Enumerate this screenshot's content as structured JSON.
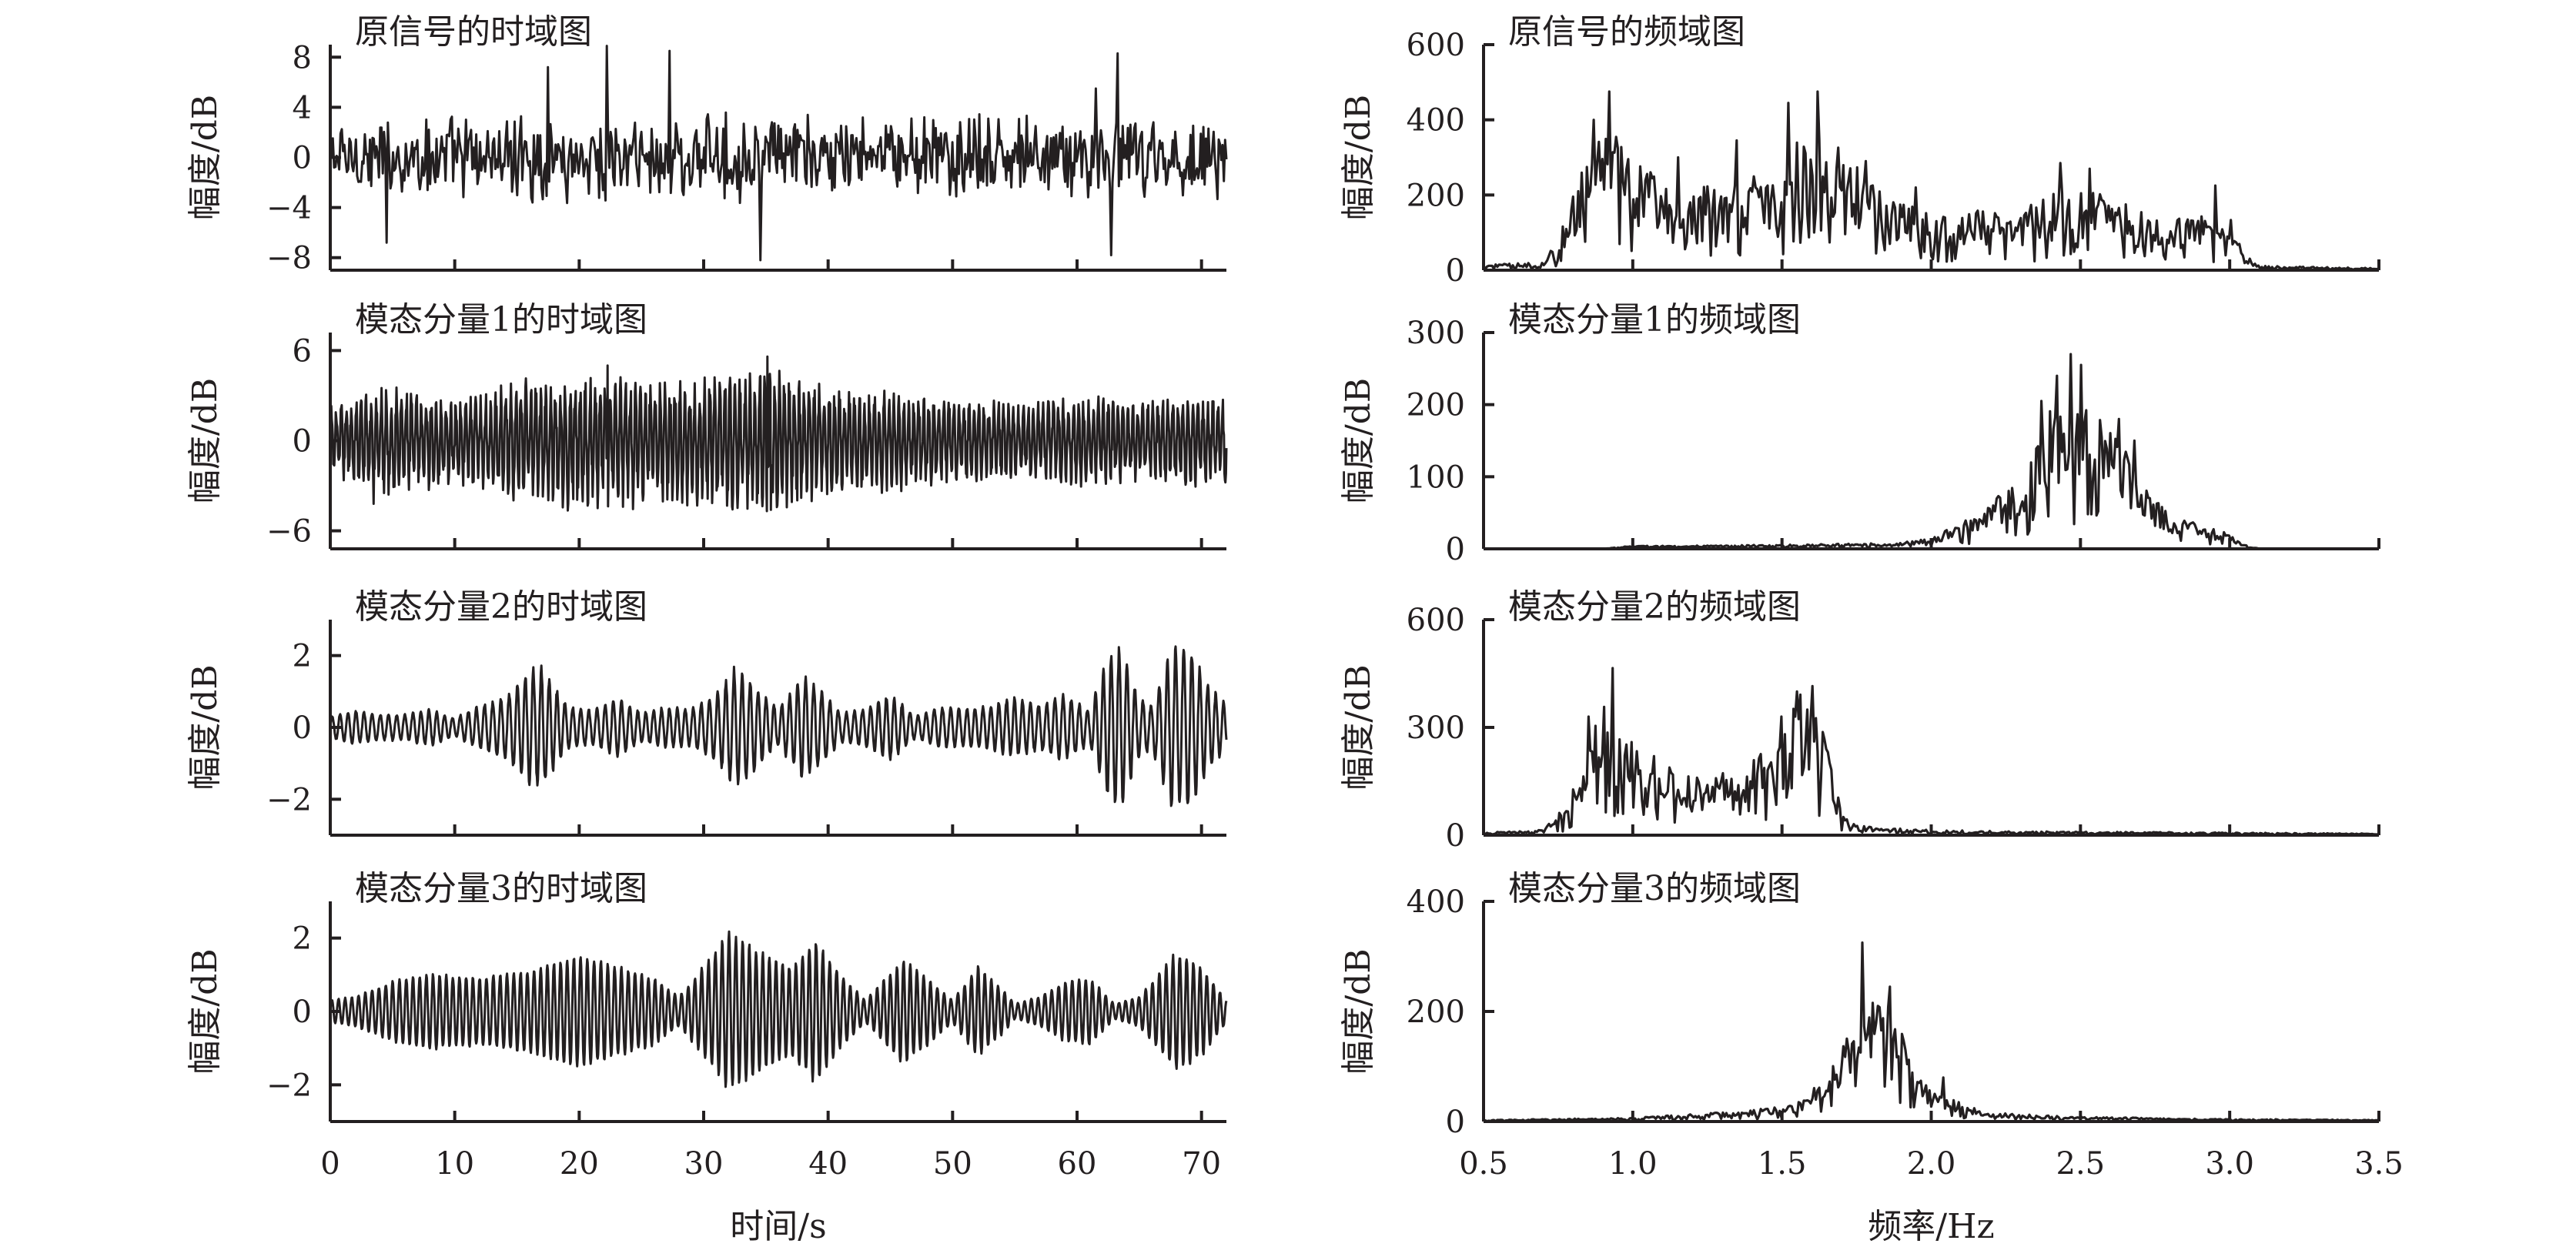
{
  "colors": {
    "ink": "#231f20",
    "background": "#ffffff"
  },
  "chart_data": [
    {
      "type": "line",
      "domain": "time",
      "title": "原信号的时域图",
      "ylabel": "幅度/dB",
      "xlabel": "",
      "xlim": [
        0,
        72
      ],
      "ylim": [
        -9,
        9
      ],
      "yticks": [
        8,
        4,
        0,
        -4,
        -8
      ],
      "ytick_labels": [
        "8",
        "4",
        "0",
        "−4",
        "−8"
      ],
      "xticks": [
        0,
        10,
        20,
        30,
        40,
        50,
        60,
        70
      ],
      "xtick_labels": [],
      "signal": {
        "kind": "noise",
        "scale": 2.6,
        "spikes": [
          [
            22.2,
            8.9
          ],
          [
            27.3,
            8.5
          ],
          [
            34.6,
            -8.2
          ],
          [
            62.7,
            -7.8
          ],
          [
            63.3,
            8.3
          ],
          [
            61.5,
            5.5
          ],
          [
            17.5,
            7.2
          ],
          [
            4.5,
            -6.8
          ]
        ]
      }
    },
    {
      "type": "line",
      "domain": "time",
      "title": "模态分量1的时域图",
      "ylabel": "幅度/dB",
      "xlabel": "",
      "xlim": [
        0,
        72
      ],
      "ylim": [
        -7.2,
        7.2
      ],
      "yticks": [
        6,
        0,
        -6
      ],
      "ytick_labels": [
        "6",
        "0",
        "−6"
      ],
      "xticks": [
        0,
        10,
        20,
        30,
        40,
        50,
        60,
        70
      ],
      "xtick_labels": [],
      "signal": {
        "kind": "oscillation",
        "freq": 2.5,
        "amps": [
          [
            0,
            1.8
          ],
          [
            5,
            3.0
          ],
          [
            10,
            2.2
          ],
          [
            15,
            3.0
          ],
          [
            20,
            3.6
          ],
          [
            25,
            3.4
          ],
          [
            30,
            3.2
          ],
          [
            35,
            4.0
          ],
          [
            40,
            2.8
          ],
          [
            45,
            2.6
          ],
          [
            50,
            2.2
          ],
          [
            55,
            2.0
          ],
          [
            60,
            2.4
          ],
          [
            65,
            2.0
          ],
          [
            70,
            2.6
          ],
          [
            72,
            2.4
          ]
        ],
        "jitter": 0.35,
        "spikes": [
          [
            35.1,
            5.6
          ],
          [
            35.4,
            -4.6
          ],
          [
            22.3,
            5.0
          ],
          [
            3.5,
            -4.2
          ]
        ]
      }
    },
    {
      "type": "line",
      "domain": "time",
      "title": "模态分量2的时域图",
      "ylabel": "幅度/dB",
      "xlabel": "",
      "xlim": [
        0,
        72
      ],
      "ylim": [
        -3,
        3
      ],
      "yticks": [
        2,
        0,
        -2
      ],
      "ytick_labels": [
        "2",
        "0",
        "−2"
      ],
      "xticks": [
        0,
        10,
        20,
        30,
        40,
        50,
        60,
        70
      ],
      "xtick_labels": [],
      "signal": {
        "kind": "oscillation",
        "freq": 1.55,
        "amps": [
          [
            0,
            0.3
          ],
          [
            2,
            0.45
          ],
          [
            4,
            0.35
          ],
          [
            6,
            0.35
          ],
          [
            8,
            0.5
          ],
          [
            10,
            0.25
          ],
          [
            12,
            0.6
          ],
          [
            14,
            0.8
          ],
          [
            16,
            1.55
          ],
          [
            17,
            1.6
          ],
          [
            19,
            0.6
          ],
          [
            21,
            0.45
          ],
          [
            23,
            0.8
          ],
          [
            25,
            0.4
          ],
          [
            27,
            0.55
          ],
          [
            29,
            0.5
          ],
          [
            31,
            0.9
          ],
          [
            32.5,
            1.6
          ],
          [
            34,
            1.2
          ],
          [
            36,
            0.5
          ],
          [
            38,
            1.4
          ],
          [
            39.5,
            1.0
          ],
          [
            41,
            0.4
          ],
          [
            43,
            0.5
          ],
          [
            45,
            0.9
          ],
          [
            47,
            0.3
          ],
          [
            49,
            0.55
          ],
          [
            51,
            0.5
          ],
          [
            53,
            0.6
          ],
          [
            55,
            0.8
          ],
          [
            57,
            0.6
          ],
          [
            59,
            0.9
          ],
          [
            61,
            0.45
          ],
          [
            62.5,
            1.9
          ],
          [
            63.5,
            2.2
          ],
          [
            65,
            0.8
          ],
          [
            66,
            0.6
          ],
          [
            67.5,
            2.1
          ],
          [
            69,
            2.2
          ],
          [
            70.5,
            1.2
          ],
          [
            72,
            0.6
          ]
        ],
        "jitter": 0.08,
        "spikes": []
      }
    },
    {
      "type": "line",
      "domain": "time",
      "title": "模态分量3的时域图",
      "ylabel": "幅度/dB",
      "xlabel": "时间/s",
      "xlim": [
        0,
        72
      ],
      "ylim": [
        -3,
        3
      ],
      "yticks": [
        2,
        0,
        -2
      ],
      "ytick_labels": [
        "2",
        "0",
        "−2"
      ],
      "xticks": [
        0,
        10,
        20,
        30,
        40,
        50,
        60,
        70
      ],
      "xtick_labels": [
        "0",
        "10",
        "20",
        "30",
        "40",
        "50",
        "60",
        "70"
      ],
      "signal": {
        "kind": "oscillation",
        "freq": 1.85,
        "amps": [
          [
            0,
            0.3
          ],
          [
            2,
            0.4
          ],
          [
            5,
            0.8
          ],
          [
            8,
            1.0
          ],
          [
            12,
            0.9
          ],
          [
            16,
            1.1
          ],
          [
            20,
            1.5
          ],
          [
            23,
            1.2
          ],
          [
            26,
            0.9
          ],
          [
            28,
            0.4
          ],
          [
            30,
            1.2
          ],
          [
            32,
            2.1
          ],
          [
            35,
            1.5
          ],
          [
            37,
            1.2
          ],
          [
            39,
            1.9
          ],
          [
            41,
            1.0
          ],
          [
            43,
            0.3
          ],
          [
            46,
            1.4
          ],
          [
            48,
            0.9
          ],
          [
            50,
            0.3
          ],
          [
            52,
            1.2
          ],
          [
            54,
            0.6
          ],
          [
            55,
            0.2
          ],
          [
            57,
            0.4
          ],
          [
            59,
            0.8
          ],
          [
            61,
            0.9
          ],
          [
            63,
            0.2
          ],
          [
            65,
            0.4
          ],
          [
            68,
            1.6
          ],
          [
            70,
            1.2
          ],
          [
            72,
            0.3
          ]
        ],
        "jitter": 0.05,
        "spikes": []
      }
    },
    {
      "type": "line",
      "domain": "frequency",
      "title": "原信号的频域图",
      "ylabel": "幅度/dB",
      "xlabel": "",
      "xlim": [
        0.5,
        3.5
      ],
      "ylim": [
        0,
        600
      ],
      "yticks": [
        0,
        200,
        400,
        600
      ],
      "ytick_labels": [
        "0",
        "200",
        "400",
        "600"
      ],
      "xticks": [
        0.5,
        1.0,
        1.5,
        2.0,
        2.5,
        3.0,
        3.5
      ],
      "xtick_labels": [],
      "spectrum": {
        "base": [
          [
            0.5,
            10
          ],
          [
            0.7,
            15
          ],
          [
            0.75,
            60
          ],
          [
            0.8,
            150
          ],
          [
            0.85,
            230
          ],
          [
            0.9,
            280
          ],
          [
            1.0,
            200
          ],
          [
            1.1,
            170
          ],
          [
            1.2,
            160
          ],
          [
            1.3,
            150
          ],
          [
            1.4,
            170
          ],
          [
            1.5,
            210
          ],
          [
            1.6,
            260
          ],
          [
            1.7,
            230
          ],
          [
            1.8,
            160
          ],
          [
            1.9,
            130
          ],
          [
            2.0,
            100
          ],
          [
            2.1,
            110
          ],
          [
            2.2,
            110
          ],
          [
            2.3,
            110
          ],
          [
            2.4,
            140
          ],
          [
            2.5,
            150
          ],
          [
            2.6,
            140
          ],
          [
            2.7,
            110
          ],
          [
            2.8,
            100
          ],
          [
            2.9,
            100
          ],
          [
            3.0,
            110
          ],
          [
            3.05,
            30
          ],
          [
            3.1,
            8
          ],
          [
            3.5,
            4
          ]
        ],
        "noise": 0.45,
        "peaks": [
          [
            0.92,
            475
          ],
          [
            0.87,
            400
          ],
          [
            1.62,
            475
          ],
          [
            1.52,
            445
          ],
          [
            1.35,
            345
          ],
          [
            1.15,
            300
          ],
          [
            2.43,
            285
          ],
          [
            2.53,
            270
          ],
          [
            1.95,
            220
          ],
          [
            2.95,
            225
          ],
          [
            1.78,
            290
          ]
        ]
      }
    },
    {
      "type": "line",
      "domain": "frequency",
      "title": "模态分量1的频域图",
      "ylabel": "幅度/dB",
      "xlabel": "",
      "xlim": [
        0.5,
        3.5
      ],
      "ylim": [
        0,
        300
      ],
      "yticks": [
        0,
        100,
        200,
        300
      ],
      "ytick_labels": [
        "0",
        "100",
        "200",
        "300"
      ],
      "xticks": [
        0.5,
        1.0,
        1.5,
        2.0,
        2.5,
        3.0,
        3.5
      ],
      "xtick_labels": [],
      "spectrum": {
        "base": [
          [
            0.5,
            0
          ],
          [
            0.9,
            0
          ],
          [
            1.0,
            3
          ],
          [
            1.5,
            4
          ],
          [
            1.9,
            6
          ],
          [
            2.0,
            12
          ],
          [
            2.1,
            25
          ],
          [
            2.2,
            45
          ],
          [
            2.3,
            80
          ],
          [
            2.4,
            140
          ],
          [
            2.5,
            170
          ],
          [
            2.6,
            130
          ],
          [
            2.7,
            70
          ],
          [
            2.8,
            35
          ],
          [
            2.9,
            25
          ],
          [
            3.0,
            15
          ],
          [
            3.05,
            4
          ],
          [
            3.1,
            0
          ],
          [
            3.5,
            0
          ]
        ],
        "noise": 0.4,
        "peaks": [
          [
            2.47,
            270
          ],
          [
            2.42,
            240
          ],
          [
            2.5,
            255
          ],
          [
            2.37,
            205
          ],
          [
            2.63,
            180
          ],
          [
            2.68,
            150
          ]
        ]
      }
    },
    {
      "type": "line",
      "domain": "frequency",
      "title": "模态分量2的频域图",
      "ylabel": "幅度/dB",
      "xlabel": "",
      "xlim": [
        0.5,
        3.5
      ],
      "ylim": [
        0,
        600
      ],
      "yticks": [
        0,
        300,
        600
      ],
      "ytick_labels": [
        "0",
        "300",
        "600"
      ],
      "xticks": [
        0.5,
        1.0,
        1.5,
        2.0,
        2.5,
        3.0,
        3.5
      ],
      "xtick_labels": [],
      "spectrum": {
        "base": [
          [
            0.5,
            5
          ],
          [
            0.7,
            10
          ],
          [
            0.78,
            60
          ],
          [
            0.85,
            160
          ],
          [
            0.9,
            280
          ],
          [
            1.0,
            180
          ],
          [
            1.1,
            150
          ],
          [
            1.2,
            110
          ],
          [
            1.3,
            120
          ],
          [
            1.4,
            140
          ],
          [
            1.5,
            230
          ],
          [
            1.58,
            300
          ],
          [
            1.65,
            180
          ],
          [
            1.7,
            40
          ],
          [
            1.8,
            15
          ],
          [
            2.0,
            10
          ],
          [
            2.2,
            8
          ],
          [
            3.0,
            5
          ],
          [
            3.5,
            3
          ]
        ],
        "noise": 0.45,
        "peaks": [
          [
            0.93,
            465
          ],
          [
            0.85,
            330
          ],
          [
            1.55,
            400
          ],
          [
            1.6,
            415
          ],
          [
            1.5,
            330
          ],
          [
            1.07,
            220
          ]
        ]
      }
    },
    {
      "type": "line",
      "domain": "frequency",
      "title": "模态分量3的频域图",
      "ylabel": "幅度/dB",
      "xlabel": "频率/Hz",
      "xlim": [
        0.5,
        3.5
      ],
      "ylim": [
        0,
        400
      ],
      "yticks": [
        0,
        200,
        400
      ],
      "ytick_labels": [
        "0",
        "200",
        "400"
      ],
      "xticks": [
        0.5,
        1.0,
        1.5,
        2.0,
        2.5,
        3.0,
        3.5
      ],
      "xtick_labels": [
        "0.5",
        "1.0",
        "1.5",
        "2.0",
        "2.5",
        "3.0",
        "3.5"
      ],
      "spectrum": {
        "base": [
          [
            0.5,
            2
          ],
          [
            1.0,
            5
          ],
          [
            1.2,
            10
          ],
          [
            1.4,
            15
          ],
          [
            1.55,
            25
          ],
          [
            1.65,
            60
          ],
          [
            1.72,
            120
          ],
          [
            1.8,
            180
          ],
          [
            1.88,
            170
          ],
          [
            1.95,
            70
          ],
          [
            2.0,
            40
          ],
          [
            2.1,
            25
          ],
          [
            2.2,
            12
          ],
          [
            2.4,
            8
          ],
          [
            2.8,
            4
          ],
          [
            3.5,
            2
          ]
        ],
        "noise": 0.35,
        "peaks": [
          [
            1.77,
            325
          ],
          [
            1.86,
            245
          ],
          [
            1.82,
            210
          ],
          [
            1.68,
            85
          ],
          [
            2.04,
            80
          ]
        ]
      }
    }
  ]
}
